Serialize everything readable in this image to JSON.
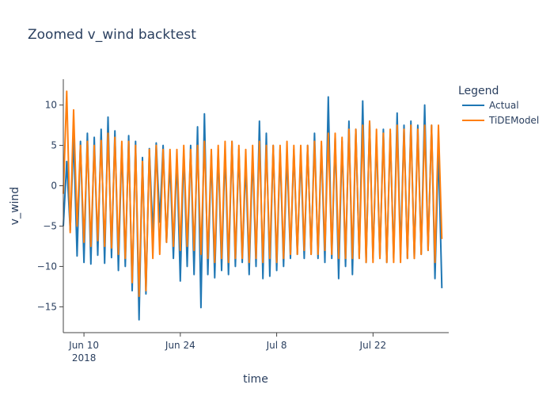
{
  "chart_data": {
    "type": "line",
    "title": "Zoomed v_wind backtest",
    "xlabel": "time",
    "ylabel": "v_wind",
    "xlim": [
      "2018-06-07",
      "2018-08-02"
    ],
    "ylim": [
      -18.2,
      13.2
    ],
    "x_ticks": [
      {
        "date": "2018-06-10",
        "label": "Jun 10",
        "sublabel": "2018"
      },
      {
        "date": "2018-06-24",
        "label": "Jun 24",
        "sublabel": ""
      },
      {
        "date": "2018-07-08",
        "label": "Jul 8",
        "sublabel": ""
      },
      {
        "date": "2018-07-22",
        "label": "Jul 22",
        "sublabel": ""
      }
    ],
    "y_ticks": [
      {
        "value": 10,
        "label": "10"
      },
      {
        "value": 5,
        "label": "5"
      },
      {
        "value": 0,
        "label": "0"
      },
      {
        "value": -5,
        "label": "−5"
      },
      {
        "value": -10,
        "label": "−10"
      },
      {
        "value": -15,
        "label": "−15"
      }
    ],
    "grid": false,
    "legend": {
      "title": "Legend",
      "placement": "top-right"
    },
    "series": [
      {
        "name": "Actual",
        "color": "#1f77b4",
        "points": [
          [
            "2018-06-07T00:00",
            -5.0
          ],
          [
            "2018-06-07T12:00",
            3.0
          ],
          [
            "2018-06-08T00:00",
            -5.5
          ],
          [
            "2018-06-08T12:00",
            6.0
          ],
          [
            "2018-06-09T00:00",
            -8.7
          ],
          [
            "2018-06-09T12:00",
            5.5
          ],
          [
            "2018-06-10T00:00",
            -9.5
          ],
          [
            "2018-06-10T12:00",
            6.5
          ],
          [
            "2018-06-11T00:00",
            -9.7
          ],
          [
            "2018-06-11T12:00",
            6.0
          ],
          [
            "2018-06-12T00:00",
            -8.6
          ],
          [
            "2018-06-12T12:00",
            7.0
          ],
          [
            "2018-06-13T00:00",
            -9.6
          ],
          [
            "2018-06-13T12:00",
            8.5
          ],
          [
            "2018-06-14T00:00",
            -8.9
          ],
          [
            "2018-06-14T12:00",
            6.8
          ],
          [
            "2018-06-15T00:00",
            -10.5
          ],
          [
            "2018-06-15T12:00",
            5.0
          ],
          [
            "2018-06-16T00:00",
            -10.0
          ],
          [
            "2018-06-16T12:00",
            6.2
          ],
          [
            "2018-06-17T00:00",
            -13.0
          ],
          [
            "2018-06-17T12:00",
            5.5
          ],
          [
            "2018-06-18T00:00",
            -16.6
          ],
          [
            "2018-06-18T12:00",
            3.5
          ],
          [
            "2018-06-19T00:00",
            -13.4
          ],
          [
            "2018-06-19T12:00",
            4.6
          ],
          [
            "2018-06-20T00:00",
            -6.0
          ],
          [
            "2018-06-20T12:00",
            5.3
          ],
          [
            "2018-06-21T00:00",
            -4.5
          ],
          [
            "2018-06-21T12:00",
            5.0
          ],
          [
            "2018-06-22T00:00",
            -7.0
          ],
          [
            "2018-06-22T12:00",
            3.0
          ],
          [
            "2018-06-23T00:00",
            -9.0
          ],
          [
            "2018-06-23T12:00",
            3.5
          ],
          [
            "2018-06-24T00:00",
            -11.8
          ],
          [
            "2018-06-24T12:00",
            4.4
          ],
          [
            "2018-06-25T00:00",
            -10.0
          ],
          [
            "2018-06-25T12:00",
            5.0
          ],
          [
            "2018-06-26T00:00",
            -11.0
          ],
          [
            "2018-06-26T12:00",
            7.3
          ],
          [
            "2018-06-27T00:00",
            -15.1
          ],
          [
            "2018-06-27T12:00",
            8.9
          ],
          [
            "2018-06-28T00:00",
            -11.0
          ],
          [
            "2018-06-28T12:00",
            4.0
          ],
          [
            "2018-06-29T00:00",
            -11.4
          ],
          [
            "2018-06-29T12:00",
            4.5
          ],
          [
            "2018-06-30T00:00",
            -10.5
          ],
          [
            "2018-06-30T12:00",
            4.5
          ],
          [
            "2018-07-01T00:00",
            -11.0
          ],
          [
            "2018-07-01T12:00",
            5.5
          ],
          [
            "2018-07-02T00:00",
            -10.0
          ],
          [
            "2018-07-02T12:00",
            4.5
          ],
          [
            "2018-07-03T00:00",
            -9.5
          ],
          [
            "2018-07-03T12:00",
            3.0
          ],
          [
            "2018-07-04T00:00",
            -11.0
          ],
          [
            "2018-07-04T12:00",
            4.0
          ],
          [
            "2018-07-05T00:00",
            -10.0
          ],
          [
            "2018-07-05T12:00",
            8.0
          ],
          [
            "2018-07-06T00:00",
            -11.5
          ],
          [
            "2018-07-06T12:00",
            6.5
          ],
          [
            "2018-07-07T00:00",
            -11.2
          ],
          [
            "2018-07-07T12:00",
            5.0
          ],
          [
            "2018-07-08T00:00",
            -10.5
          ],
          [
            "2018-07-08T12:00",
            4.5
          ],
          [
            "2018-07-09T00:00",
            -10.0
          ],
          [
            "2018-07-09T12:00",
            4.0
          ],
          [
            "2018-07-10T00:00",
            -9.0
          ],
          [
            "2018-07-10T12:00",
            4.5
          ],
          [
            "2018-07-11T00:00",
            -8.5
          ],
          [
            "2018-07-11T12:00",
            4.0
          ],
          [
            "2018-07-12T00:00",
            -9.0
          ],
          [
            "2018-07-12T12:00",
            5.0
          ],
          [
            "2018-07-13T00:00",
            -8.5
          ],
          [
            "2018-07-13T12:00",
            6.5
          ],
          [
            "2018-07-14T00:00",
            -9.0
          ],
          [
            "2018-07-14T12:00",
            5.0
          ],
          [
            "2018-07-15T00:00",
            -9.5
          ],
          [
            "2018-07-15T12:00",
            11.0
          ],
          [
            "2018-07-16T00:00",
            -9.0
          ],
          [
            "2018-07-16T12:00",
            6.0
          ],
          [
            "2018-07-17T00:00",
            -11.5
          ],
          [
            "2018-07-17T12:00",
            5.5
          ],
          [
            "2018-07-18T00:00",
            -10.0
          ],
          [
            "2018-07-18T12:00",
            8.0
          ],
          [
            "2018-07-19T00:00",
            -11.0
          ],
          [
            "2018-07-19T12:00",
            7.0
          ],
          [
            "2018-07-20T00:00",
            -9.0
          ],
          [
            "2018-07-20T12:00",
            10.5
          ],
          [
            "2018-07-21T00:00",
            -9.5
          ],
          [
            "2018-07-21T12:00",
            8.0
          ],
          [
            "2018-07-22T00:00",
            -9.0
          ],
          [
            "2018-07-22T12:00",
            6.0
          ],
          [
            "2018-07-23T00:00",
            -9.0
          ],
          [
            "2018-07-23T12:00",
            7.0
          ],
          [
            "2018-07-24T00:00",
            -9.5
          ],
          [
            "2018-07-24T12:00",
            6.5
          ],
          [
            "2018-07-25T00:00",
            -9.0
          ],
          [
            "2018-07-25T12:00",
            9.0
          ],
          [
            "2018-07-26T00:00",
            -8.5
          ],
          [
            "2018-07-26T12:00",
            7.5
          ],
          [
            "2018-07-27T00:00",
            -9.0
          ],
          [
            "2018-07-27T12:00",
            8.0
          ],
          [
            "2018-07-28T00:00",
            -9.0
          ],
          [
            "2018-07-28T12:00",
            7.5
          ],
          [
            "2018-07-29T00:00",
            -8.5
          ],
          [
            "2018-07-29T12:00",
            10.0
          ],
          [
            "2018-07-30T00:00",
            -8.0
          ],
          [
            "2018-07-30T12:00",
            7.5
          ],
          [
            "2018-07-31T00:00",
            -11.5
          ],
          [
            "2018-07-31T12:00",
            4.5
          ],
          [
            "2018-08-01T00:00",
            -12.7
          ]
        ]
      },
      {
        "name": "TiDEModel",
        "color": "#ff7f0e",
        "points": [
          [
            "2018-06-07T00:00",
            -1.0
          ],
          [
            "2018-06-07T12:00",
            11.7
          ],
          [
            "2018-06-08T00:00",
            -5.8
          ],
          [
            "2018-06-08T12:00",
            9.4
          ],
          [
            "2018-06-09T00:00",
            -5.0
          ],
          [
            "2018-06-09T12:00",
            5.0
          ],
          [
            "2018-06-10T00:00",
            -7.0
          ],
          [
            "2018-06-10T12:00",
            5.5
          ],
          [
            "2018-06-11T00:00",
            -7.5
          ],
          [
            "2018-06-11T12:00",
            5.0
          ],
          [
            "2018-06-12T00:00",
            -6.8
          ],
          [
            "2018-06-12T12:00",
            5.6
          ],
          [
            "2018-06-13T00:00",
            -7.5
          ],
          [
            "2018-06-13T12:00",
            6.5
          ],
          [
            "2018-06-14T00:00",
            -7.7
          ],
          [
            "2018-06-14T12:00",
            6.0
          ],
          [
            "2018-06-15T00:00",
            -8.5
          ],
          [
            "2018-06-15T12:00",
            5.5
          ],
          [
            "2018-06-16T00:00",
            -9.0
          ],
          [
            "2018-06-16T12:00",
            5.5
          ],
          [
            "2018-06-17T00:00",
            -12.0
          ],
          [
            "2018-06-17T12:00",
            5.0
          ],
          [
            "2018-06-18T00:00",
            -13.7
          ],
          [
            "2018-06-18T12:00",
            3.0
          ],
          [
            "2018-06-19T00:00",
            -13.0
          ],
          [
            "2018-06-19T12:00",
            4.5
          ],
          [
            "2018-06-20T00:00",
            -9.0
          ],
          [
            "2018-06-20T12:00",
            5.0
          ],
          [
            "2018-06-21T00:00",
            -8.5
          ],
          [
            "2018-06-21T12:00",
            4.5
          ],
          [
            "2018-06-22T00:00",
            -7.0
          ],
          [
            "2018-06-22T12:00",
            4.5
          ],
          [
            "2018-06-23T00:00",
            -7.5
          ],
          [
            "2018-06-23T12:00",
            4.5
          ],
          [
            "2018-06-24T00:00",
            -8.0
          ],
          [
            "2018-06-24T12:00",
            5.0
          ],
          [
            "2018-06-25T00:00",
            -7.5
          ],
          [
            "2018-06-25T12:00",
            4.5
          ],
          [
            "2018-06-26T00:00",
            -8.0
          ],
          [
            "2018-06-26T12:00",
            5.0
          ],
          [
            "2018-06-27T00:00",
            -8.5
          ],
          [
            "2018-06-27T12:00",
            5.5
          ],
          [
            "2018-06-28T00:00",
            -9.0
          ],
          [
            "2018-06-28T12:00",
            4.5
          ],
          [
            "2018-06-29T00:00",
            -9.5
          ],
          [
            "2018-06-29T12:00",
            5.0
          ],
          [
            "2018-06-30T00:00",
            -9.0
          ],
          [
            "2018-06-30T12:00",
            5.5
          ],
          [
            "2018-07-01T00:00",
            -9.5
          ],
          [
            "2018-07-01T12:00",
            5.5
          ],
          [
            "2018-07-02T00:00",
            -9.0
          ],
          [
            "2018-07-02T12:00",
            5.0
          ],
          [
            "2018-07-03T00:00",
            -9.0
          ],
          [
            "2018-07-03T12:00",
            4.5
          ],
          [
            "2018-07-04T00:00",
            -9.5
          ],
          [
            "2018-07-04T12:00",
            5.0
          ],
          [
            "2018-07-05T00:00",
            -9.0
          ],
          [
            "2018-07-05T12:00",
            5.5
          ],
          [
            "2018-07-06T00:00",
            -9.5
          ],
          [
            "2018-07-06T12:00",
            5.0
          ],
          [
            "2018-07-07T00:00",
            -9.0
          ],
          [
            "2018-07-07T12:00",
            5.0
          ],
          [
            "2018-07-08T00:00",
            -9.5
          ],
          [
            "2018-07-08T12:00",
            5.0
          ],
          [
            "2018-07-09T00:00",
            -9.0
          ],
          [
            "2018-07-09T12:00",
            5.5
          ],
          [
            "2018-07-10T00:00",
            -8.5
          ],
          [
            "2018-07-10T12:00",
            5.0
          ],
          [
            "2018-07-11T00:00",
            -8.5
          ],
          [
            "2018-07-11T12:00",
            5.0
          ],
          [
            "2018-07-12T00:00",
            -8.0
          ],
          [
            "2018-07-12T12:00",
            5.0
          ],
          [
            "2018-07-13T00:00",
            -8.5
          ],
          [
            "2018-07-13T12:00",
            5.5
          ],
          [
            "2018-07-14T00:00",
            -8.5
          ],
          [
            "2018-07-14T12:00",
            5.5
          ],
          [
            "2018-07-15T00:00",
            -8.0
          ],
          [
            "2018-07-15T12:00",
            6.5
          ],
          [
            "2018-07-16T00:00",
            -8.5
          ],
          [
            "2018-07-16T12:00",
            6.5
          ],
          [
            "2018-07-17T00:00",
            -9.0
          ],
          [
            "2018-07-17T12:00",
            6.0
          ],
          [
            "2018-07-18T00:00",
            -9.0
          ],
          [
            "2018-07-18T12:00",
            7.0
          ],
          [
            "2018-07-19T00:00",
            -9.0
          ],
          [
            "2018-07-19T12:00",
            7.0
          ],
          [
            "2018-07-20T00:00",
            -9.0
          ],
          [
            "2018-07-20T12:00",
            7.5
          ],
          [
            "2018-07-21T00:00",
            -9.5
          ],
          [
            "2018-07-21T12:00",
            8.0
          ],
          [
            "2018-07-22T00:00",
            -9.5
          ],
          [
            "2018-07-22T12:00",
            7.0
          ],
          [
            "2018-07-23T00:00",
            -9.0
          ],
          [
            "2018-07-23T12:00",
            6.5
          ],
          [
            "2018-07-24T00:00",
            -9.5
          ],
          [
            "2018-07-24T12:00",
            7.0
          ],
          [
            "2018-07-25T00:00",
            -9.5
          ],
          [
            "2018-07-25T12:00",
            7.5
          ],
          [
            "2018-07-26T00:00",
            -9.5
          ],
          [
            "2018-07-26T12:00",
            7.0
          ],
          [
            "2018-07-27T00:00",
            -9.0
          ],
          [
            "2018-07-27T12:00",
            7.5
          ],
          [
            "2018-07-28T00:00",
            -9.0
          ],
          [
            "2018-07-28T12:00",
            7.0
          ],
          [
            "2018-07-29T00:00",
            -8.5
          ],
          [
            "2018-07-29T12:00",
            7.5
          ],
          [
            "2018-07-30T00:00",
            -8.0
          ],
          [
            "2018-07-30T12:00",
            7.5
          ],
          [
            "2018-07-31T00:00",
            -9.5
          ],
          [
            "2018-07-31T12:00",
            7.5
          ],
          [
            "2018-08-01T00:00",
            -6.6
          ]
        ]
      }
    ]
  }
}
